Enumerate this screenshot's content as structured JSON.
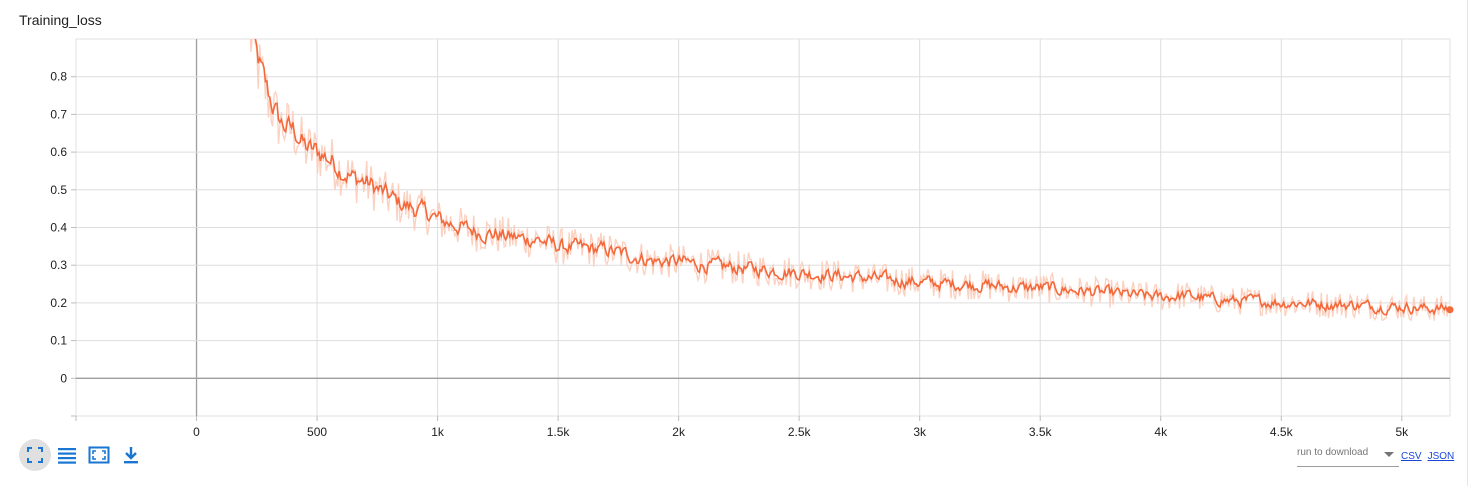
{
  "card": {
    "title": "Training_loss"
  },
  "chart_data": {
    "type": "line",
    "title": "Training_loss",
    "xlabel": "",
    "ylabel": "",
    "xlim": [
      -500,
      5200
    ],
    "ylim": [
      -0.1,
      0.9
    ],
    "x_ticks": [
      0,
      500,
      1000,
      1500,
      2000,
      2500,
      3000,
      3500,
      4000,
      4500,
      5000
    ],
    "x_tick_labels": [
      "0",
      "500",
      "1k",
      "1.5k",
      "2k",
      "2.5k",
      "3k",
      "3.5k",
      "4k",
      "4.5k",
      "5k"
    ],
    "y_ticks": [
      0,
      0.1,
      0.2,
      0.3,
      0.4,
      0.5,
      0.6,
      0.7,
      0.8
    ],
    "y_tick_labels": [
      "0",
      "0.1",
      "0.2",
      "0.3",
      "0.4",
      "0.5",
      "0.6",
      "0.7",
      "0.8"
    ],
    "grid": true,
    "series": [
      {
        "color": "#f4683a",
        "raw_color": "#fbcdbb",
        "x": [
          220,
          250,
          280,
          300,
          320,
          350,
          400,
          450,
          500,
          550,
          600,
          650,
          700,
          750,
          800,
          850,
          900,
          950,
          1000,
          1050,
          1100,
          1150,
          1200,
          1250,
          1300,
          1350,
          1400,
          1450,
          1500,
          1600,
          1700,
          1800,
          1900,
          2000,
          2100,
          2200,
          2300,
          2400,
          2500,
          2600,
          2700,
          2800,
          2900,
          3000,
          3100,
          3200,
          3300,
          3400,
          3500,
          3600,
          3700,
          3800,
          3900,
          4000,
          4100,
          4200,
          4300,
          4400,
          4500,
          4600,
          4700,
          4800,
          4900,
          5000,
          5100,
          5200
        ],
        "y": [
          0.92,
          0.84,
          0.78,
          0.74,
          0.71,
          0.67,
          0.66,
          0.61,
          0.6,
          0.58,
          0.55,
          0.53,
          0.52,
          0.5,
          0.48,
          0.46,
          0.45,
          0.44,
          0.42,
          0.41,
          0.4,
          0.39,
          0.385,
          0.38,
          0.375,
          0.37,
          0.37,
          0.36,
          0.35,
          0.345,
          0.34,
          0.325,
          0.31,
          0.31,
          0.3,
          0.295,
          0.29,
          0.285,
          0.28,
          0.275,
          0.27,
          0.265,
          0.26,
          0.255,
          0.25,
          0.25,
          0.245,
          0.24,
          0.24,
          0.235,
          0.23,
          0.225,
          0.22,
          0.215,
          0.22,
          0.21,
          0.205,
          0.205,
          0.2,
          0.2,
          0.195,
          0.195,
          0.19,
          0.19,
          0.185,
          0.185
        ]
      }
    ]
  },
  "toolbar": {
    "icons": [
      "fit-domain-icon",
      "toggle-log-icon",
      "fit-data-icon",
      "download-icon"
    ]
  },
  "download": {
    "run_placeholder": "run to download",
    "csv_label": "CSV",
    "json_label": "JSON"
  },
  "colors": {
    "accent": "#f4683a",
    "icon": "#1976d2"
  }
}
